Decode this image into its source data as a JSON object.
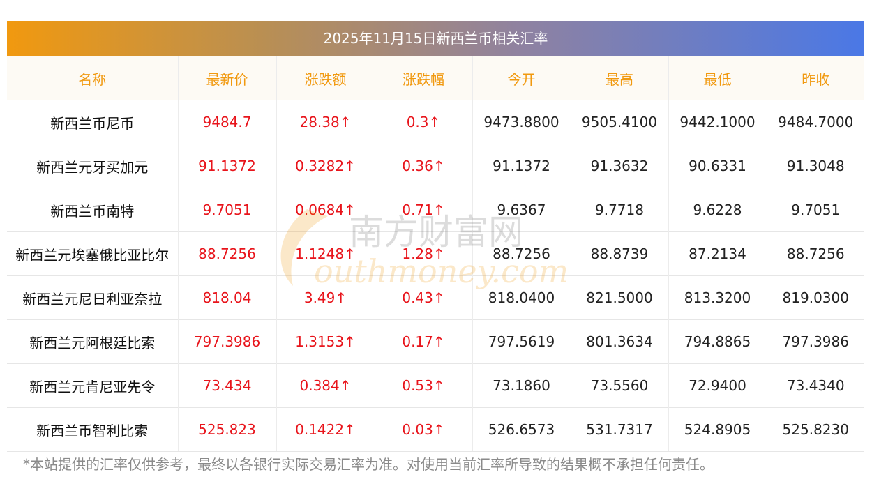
{
  "header": {
    "title": "2025年11月15日新西兰币相关汇率"
  },
  "columns": [
    "名称",
    "最新价",
    "涨跌额",
    "涨跌幅",
    "今开",
    "最高",
    "最低",
    "昨收"
  ],
  "rows": [
    {
      "name": "新西兰币尼币",
      "latest": "9484.7",
      "change": "28.38↑",
      "pct": "0.3↑",
      "open": "9473.8800",
      "high": "9505.4100",
      "low": "9442.1000",
      "prev": "9484.7000"
    },
    {
      "name": "新西兰元牙买加元",
      "latest": "91.1372",
      "change": "0.3282↑",
      "pct": "0.36↑",
      "open": "91.1372",
      "high": "91.3632",
      "low": "90.6331",
      "prev": "91.3048"
    },
    {
      "name": "新西兰币南特",
      "latest": "9.7051",
      "change": "0.0684↑",
      "pct": "0.71↑",
      "open": "9.6367",
      "high": "9.7718",
      "low": "9.6228",
      "prev": "9.7051"
    },
    {
      "name": "新西兰元埃塞俄比亚比尔",
      "latest": "88.7256",
      "change": "1.1248↑",
      "pct": "1.28↑",
      "open": "88.7256",
      "high": "88.8739",
      "low": "87.2134",
      "prev": "88.7256"
    },
    {
      "name": "新西兰元尼日利亚奈拉",
      "latest": "818.04",
      "change": "3.49↑",
      "pct": "0.43↑",
      "open": "818.0400",
      "high": "821.5000",
      "low": "813.3200",
      "prev": "819.0300"
    },
    {
      "name": "新西兰元阿根廷比索",
      "latest": "797.3986",
      "change": "1.3153↑",
      "pct": "0.17↑",
      "open": "797.5619",
      "high": "801.3634",
      "low": "794.8865",
      "prev": "797.3986"
    },
    {
      "name": "新西兰元肯尼亚先令",
      "latest": "73.434",
      "change": "0.384↑",
      "pct": "0.53↑",
      "open": "73.1860",
      "high": "73.5560",
      "low": "72.9400",
      "prev": "73.4340"
    },
    {
      "name": "新西兰币智利比索",
      "latest": "525.823",
      "change": "0.1422↑",
      "pct": "0.03↑",
      "open": "526.6573",
      "high": "531.7317",
      "low": "524.8905",
      "prev": "525.8230"
    }
  ],
  "watermark": {
    "cn": "南方财富网",
    "en": "outhmoney.com"
  },
  "footer": {
    "note": "*本站提供的汇率仅供参考，最终以各银行实际交易汇率为准。对使用当前汇率所导致的结果概不承担任何责任。"
  },
  "colors": {
    "accent_orange": "#f1990f",
    "accent_blue": "#4a78e6",
    "up_red": "#e8141b"
  }
}
